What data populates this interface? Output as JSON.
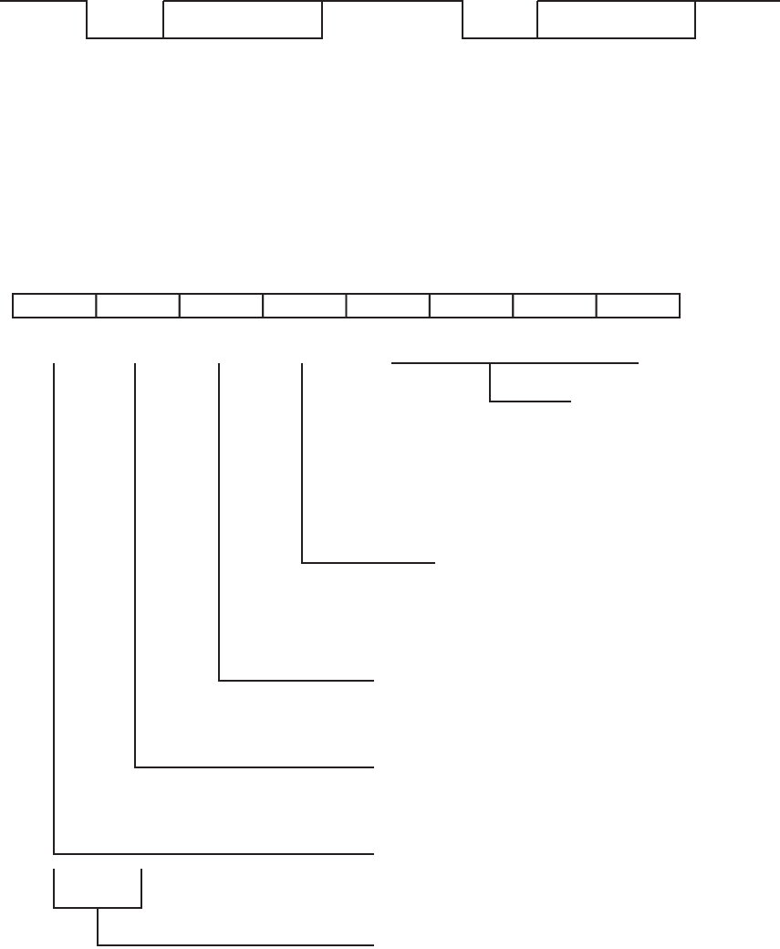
{
  "diagram": {
    "line_color": "#231f20",
    "background": "#ffffff",
    "cells": [
      "",
      "",
      "",
      "",
      "",
      "",
      "",
      ""
    ]
  }
}
